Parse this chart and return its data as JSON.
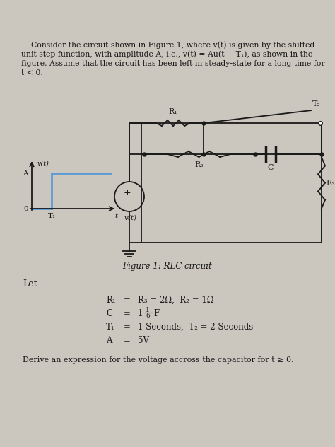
{
  "bg_color": "#cbc6be",
  "text_color": "#1a1a1a",
  "fig_width": 4.74,
  "fig_height": 6.32,
  "dpi": 100,
  "para_line1": "Consider the circuit shown in Figure 1, where v(t) is given by the shifted",
  "para_line2": "unit step function, with amplitude A, i.e., v(t) = Au(t − T₁), as shown in the",
  "para_line3": "figure. Assume that the circuit has been left in steady-state for a long time for",
  "para_line4": "t < 0.",
  "figure_caption": "Figure 1: RLC circuit",
  "let_text": "Let",
  "derive_text": "Derive an expression for the voltage accross the capacitor for t ≥ 0.",
  "step_blue": "#5b9bd5",
  "circuit_black": "#1a1a1a"
}
